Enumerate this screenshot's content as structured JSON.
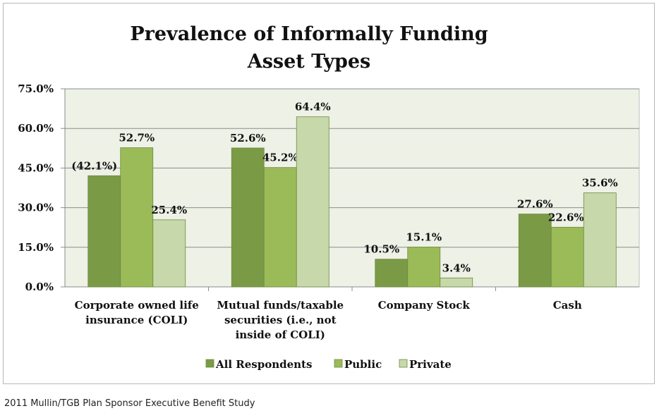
{
  "chart_data": {
    "type": "bar",
    "title_lines": [
      "Prevalence of Informally Funding",
      "Asset Types"
    ],
    "categories": [
      [
        "Corporate owned life",
        "insurance (COLI)"
      ],
      [
        "Mutual funds/taxable",
        "securities (i.e., not",
        "inside of COLI)"
      ],
      [
        "Company Stock"
      ],
      [
        "Cash"
      ]
    ],
    "series": [
      {
        "name": "All Respondents",
        "values": [
          42.1,
          52.6,
          10.5,
          27.6
        ],
        "labels": [
          "(42.1%)",
          "52.6%",
          "10.5%",
          "27.6%"
        ],
        "color": "#7a9a45"
      },
      {
        "name": "Public",
        "values": [
          52.7,
          45.2,
          15.1,
          22.6
        ],
        "labels": [
          "52.7%",
          "45.2%",
          "15.1%",
          "22.6%"
        ],
        "color": "#9bbb59"
      },
      {
        "name": "Private",
        "values": [
          25.4,
          64.4,
          3.4,
          35.6
        ],
        "labels": [
          "25.4%",
          "64.4%",
          "3.4%",
          "35.6%"
        ],
        "color": "#c7d8aa"
      }
    ],
    "yticks": [
      "0.0%",
      "15.0%",
      "30.0%",
      "45.0%",
      "60.0%",
      "75.0%"
    ],
    "ylim": [
      0,
      75
    ],
    "grid": true,
    "legend_position": "bottom",
    "plot_background": "#edf1e6"
  },
  "source_note": "2011 Mullin/TGB Plan Sponsor Executive Benefit Study"
}
